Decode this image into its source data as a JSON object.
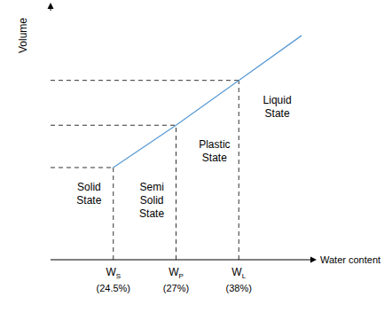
{
  "chart_data": {
    "type": "line",
    "x_label": "Water content",
    "y_label": "Volume",
    "categories": [
      null,
      "WS (24.5%)",
      "WP (27%)",
      "WL (38%)",
      null
    ],
    "values": [
      null,
      3.7,
      5.4,
      7.2,
      9
    ],
    "color": "#5b9bd5",
    "ylim": [
      0,
      10
    ],
    "tick_labels": "x",
    "grid": false,
    "regions": [
      "Solid State",
      "Semi Solid State",
      "Plastic State",
      "Liquid State"
    ]
  }
}
